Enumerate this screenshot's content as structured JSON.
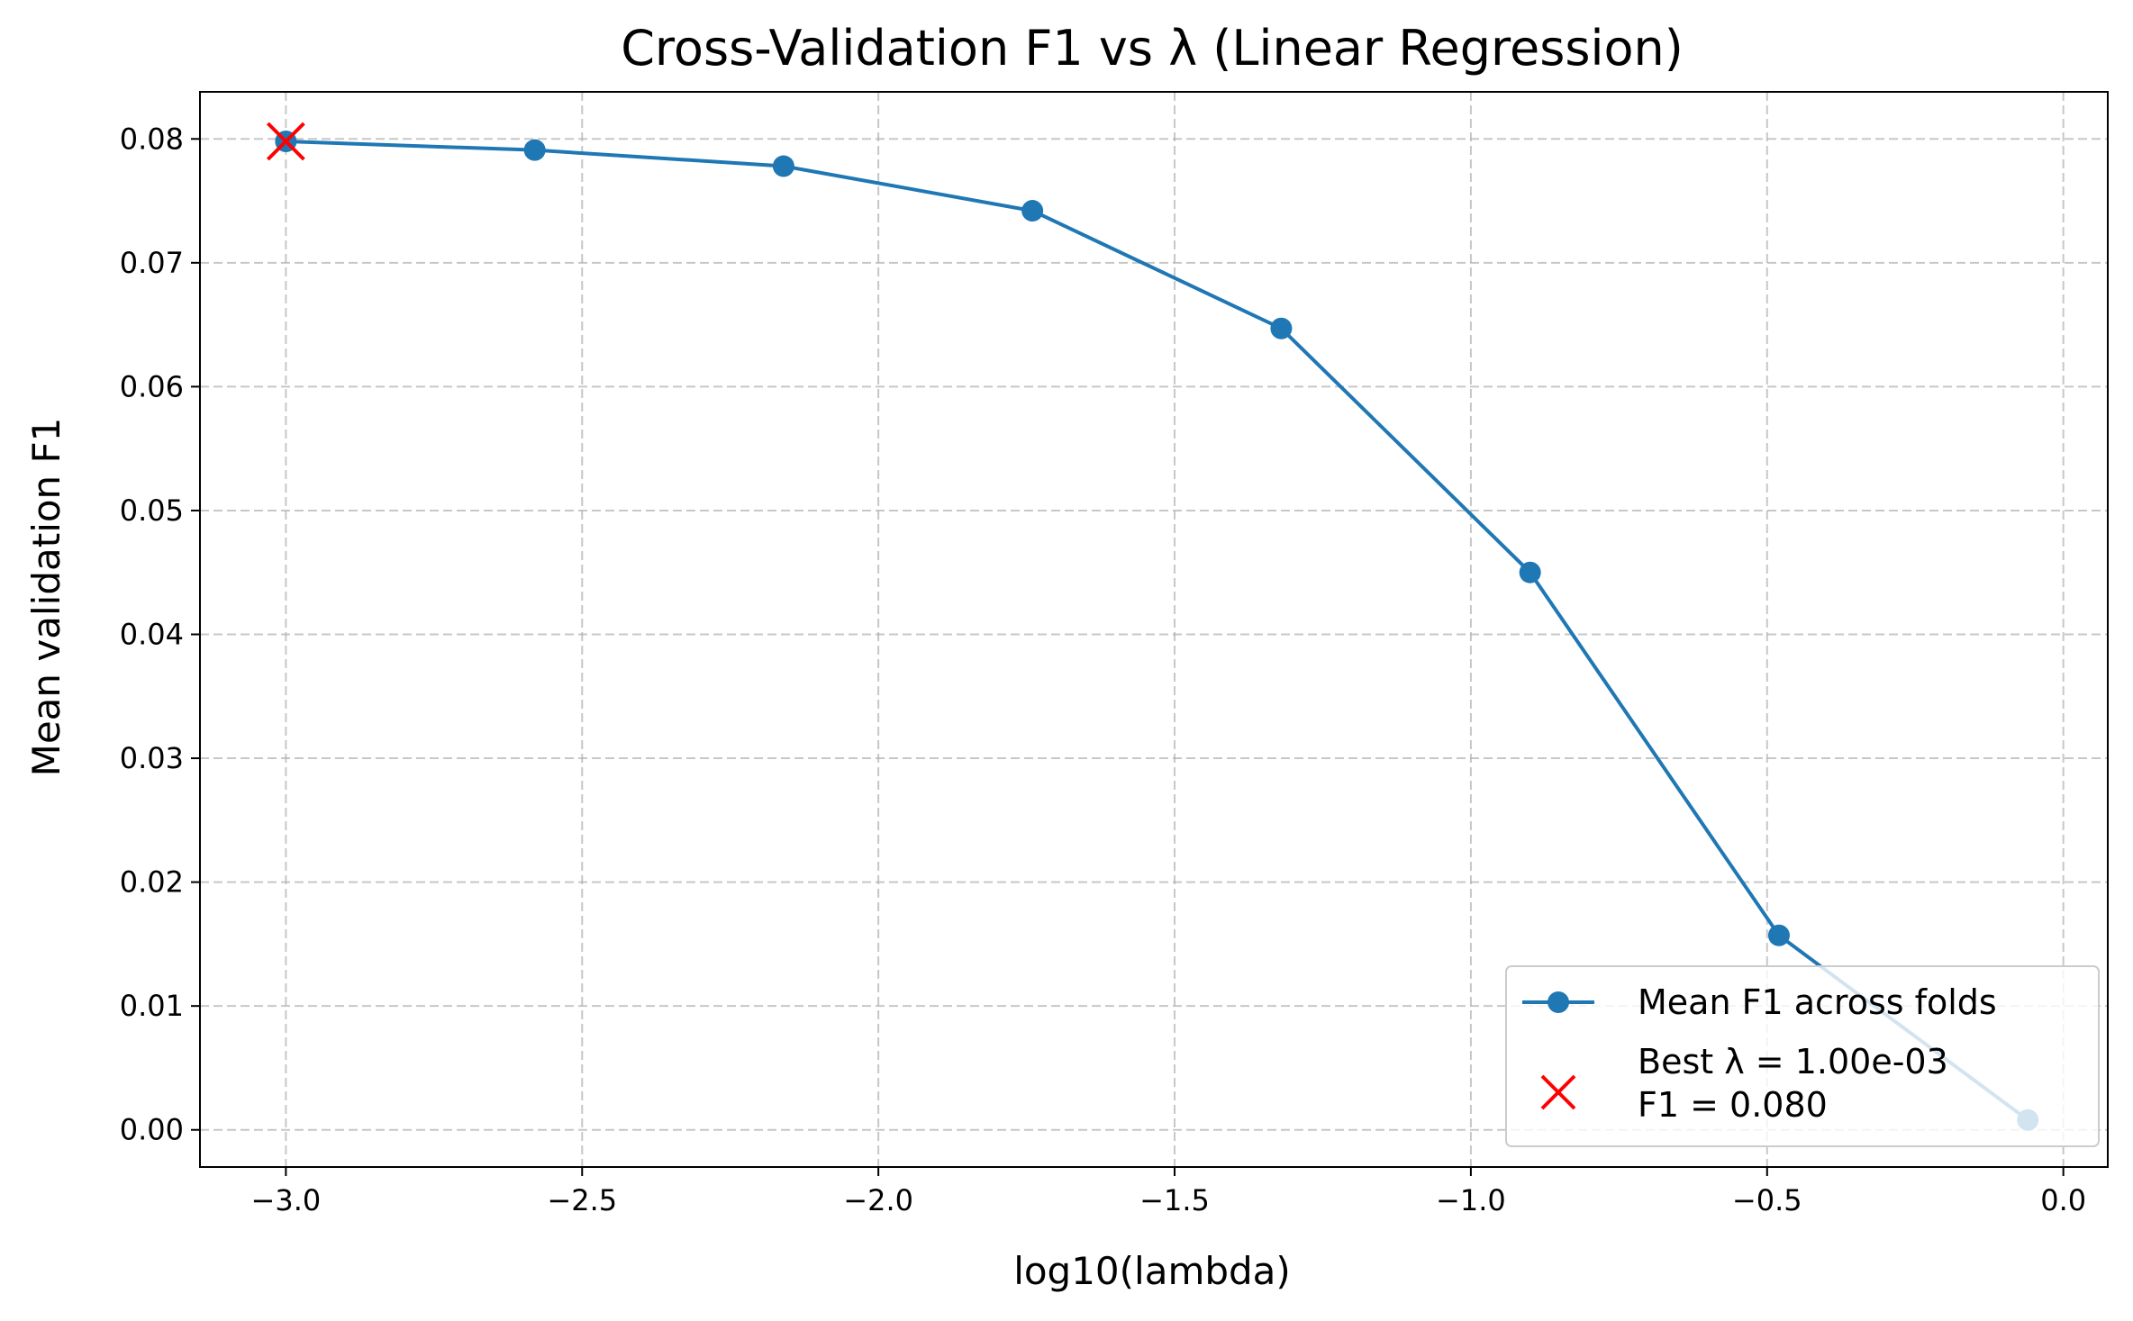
{
  "chart_data": {
    "type": "line",
    "title": "Cross-Validation F1 vs λ (Linear Regression)",
    "xlabel": "log10(lambda)",
    "ylabel": "Mean validation F1",
    "xlim": [
      -3.145,
      0.075
    ],
    "ylim": [
      -0.003,
      0.0838
    ],
    "grid": true,
    "legend_position": "lower-right",
    "x_ticks": [
      -3.0,
      -2.5,
      -2.0,
      -1.5,
      -1.0,
      -0.5,
      0.0
    ],
    "x_tick_labels": [
      "−3.0",
      "−2.5",
      "−2.0",
      "−1.5",
      "−1.0",
      "−0.5",
      "0.0"
    ],
    "y_ticks": [
      0.0,
      0.01,
      0.02,
      0.03,
      0.04,
      0.05,
      0.06,
      0.07,
      0.08
    ],
    "y_tick_labels": [
      "0.00",
      "0.01",
      "0.02",
      "0.03",
      "0.04",
      "0.05",
      "0.06",
      "0.07",
      "0.08"
    ],
    "series": [
      {
        "name": "Mean F1 across folds",
        "color": "#1f77b4",
        "marker": "circle",
        "x": [
          -3.0,
          -2.58,
          -2.16,
          -1.74,
          -1.32,
          -0.9,
          -0.48,
          -0.06
        ],
        "y": [
          0.0798,
          0.0791,
          0.0778,
          0.0742,
          0.0647,
          0.045,
          0.0157,
          0.0008
        ]
      }
    ],
    "best_point": {
      "marker": "x",
      "color": "#ff0000",
      "x": -3.0,
      "y": 0.0798,
      "legend_line1": "Best λ = 1.00e-03",
      "legend_line2": "F1 = 0.080"
    }
  }
}
